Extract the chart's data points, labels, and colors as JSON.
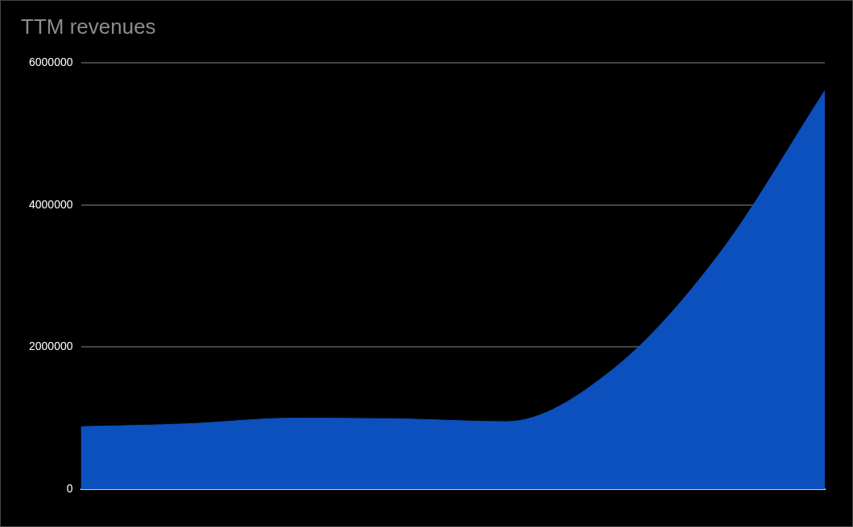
{
  "chart_data": {
    "type": "area",
    "title": "TTM revenues",
    "categories": [
      null,
      null,
      null,
      null,
      null,
      null,
      null,
      null
    ],
    "series": [
      {
        "color": "#0c50bd",
        "values": [
          880000,
          920000,
          1000000,
          990000,
          950000,
          1680000,
          3300000,
          5610000
        ]
      }
    ],
    "ylim": [
      0,
      6000000
    ],
    "yticks": [
      0,
      2000000,
      4000000,
      6000000
    ],
    "grid": "y",
    "legend": false,
    "tick_labels": "y"
  }
}
